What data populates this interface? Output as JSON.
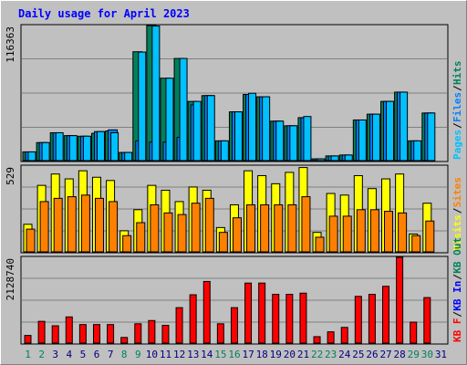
{
  "chart_data": {
    "type": "bar",
    "title": "Daily usage for April 2023",
    "categories": [
      "1",
      "2",
      "3",
      "4",
      "5",
      "6",
      "7",
      "8",
      "9",
      "10",
      "11",
      "12",
      "13",
      "14",
      "15",
      "16",
      "17",
      "18",
      "19",
      "20",
      "21",
      "22",
      "23",
      "24",
      "25",
      "26",
      "27",
      "28",
      "29",
      "30",
      "31"
    ],
    "weekend_days": [
      "1",
      "2",
      "8",
      "9",
      "15",
      "16",
      "22",
      "23",
      "29",
      "30"
    ],
    "panels": [
      {
        "id": "top",
        "max_label": "116363",
        "ymax": 116363,
        "right_labels": [
          "Pages",
          "Files",
          "Hits"
        ],
        "series": [
          {
            "name": "Hits",
            "color": "#00805c",
            "values": [
              7500,
              15500,
              24000,
              21500,
              21000,
              23500,
              25500,
              7000,
              93800,
              116363,
              71000,
              88000,
              51000,
              56000,
              17000,
              42000,
              57000,
              55000,
              34000,
              30000,
              37000,
              1500,
              4000,
              4800,
              35000,
              40000,
              51000,
              59000,
              17000,
              41000
            ]
          },
          {
            "name": "Files",
            "color": "#0080ff",
            "values": [
              7500,
              15500,
              24000,
              21500,
              21000,
              25000,
              26500,
              7000,
              17000,
              16000,
              16000,
              20000,
              48000,
              56000,
              17000,
              42000,
              57000,
              55000,
              34000,
              30000,
              37000,
              1500,
              4000,
              4800,
              35000,
              40000,
              51000,
              59000,
              17000,
              41000
            ]
          },
          {
            "name": "Pages",
            "color": "#00c0ff",
            "values": [
              7500,
              15500,
              24000,
              21500,
              21000,
              25000,
              24000,
              7000,
              93500,
              116000,
              71000,
              88000,
              51000,
              56000,
              17000,
              42000,
              58000,
              55000,
              34000,
              30000,
              38000,
              1500,
              4000,
              4800,
              35000,
              40000,
              51000,
              59000,
              17000,
              41000
            ]
          }
        ]
      },
      {
        "id": "middle",
        "max_label": "529",
        "ymax": 529,
        "right_labels": [
          "Visits",
          "Sites"
        ],
        "series": [
          {
            "name": "Visits",
            "color": "#ffff00",
            "values": [
              170,
              410,
              480,
              450,
              500,
              460,
              440,
              130,
              260,
              410,
              380,
              310,
              400,
              380,
              150,
              290,
              500,
              470,
              420,
              490,
              520,
              120,
              360,
              350,
              470,
              390,
              450,
              480,
              110,
              300
            ]
          },
          {
            "name": "Sites",
            "color": "#ff8000",
            "values": [
              140,
              310,
              330,
              340,
              350,
              330,
              310,
              100,
              180,
              290,
              240,
              230,
              300,
              330,
              120,
              210,
              290,
              290,
              290,
              290,
              340,
              90,
              220,
              220,
              260,
              260,
              250,
              240,
              100,
              190
            ]
          }
        ]
      },
      {
        "id": "bottom",
        "max_label": "2128740",
        "ymax": 2128740,
        "right_labels": [
          "KB F",
          "KB In",
          "KB Out"
        ],
        "series": [
          {
            "name": "KB F",
            "color": "#ff0000",
            "values": [
              190000,
              540000,
              430000,
              650000,
              460000,
              460000,
              460000,
              140000,
              480000,
              560000,
              440000,
              880000,
              1200000,
              1530000,
              480000,
              880000,
              1490000,
              1490000,
              1210000,
              1210000,
              1240000,
              160000,
              280000,
              390000,
              1160000,
              1210000,
              1410000,
              2128740,
              520000,
              1130000
            ]
          }
        ]
      }
    ]
  },
  "colors": {
    "background": "#c0c0c0",
    "plot_background": "#c0c0c0",
    "grid": "#808080",
    "title": "#0000ff",
    "axis_label": "#000080",
    "weekday_label": "#000080",
    "weekend_label": "#00805c",
    "Pages": "#00c0ff",
    "Files": "#0080ff",
    "Hits": "#00805c",
    "Visits": "#ffff00",
    "Sites": "#ff8000",
    "KB F": "#ff0000",
    "KB In": "#0000ff",
    "KB Out": "#00805c"
  }
}
